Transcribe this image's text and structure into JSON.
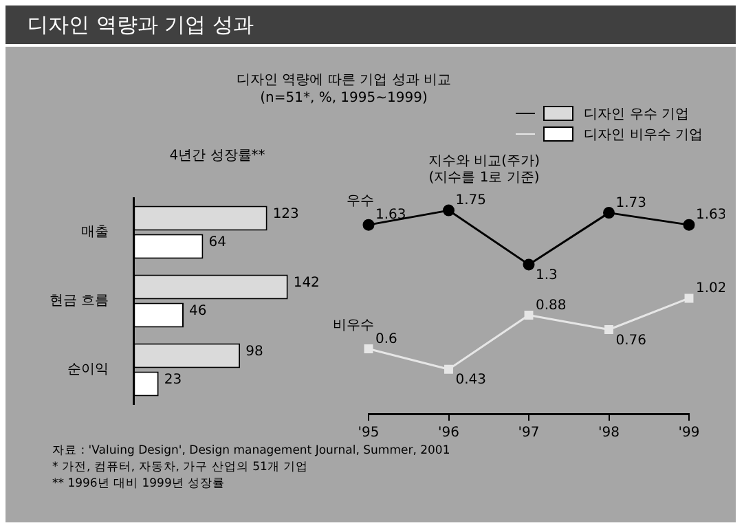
{
  "chart_data": [
    {
      "type": "other",
      "title": "디자인 역량과 기업 성과",
      "subtitle": "디자인 역량에 따른 기업 성과 비교\n(n=51*, %, 1995~1999)",
      "annotations": [
        "자료 : 'Valuing Design', Design management Journal, Summer, 2001",
        "* 가전, 컴퓨터, 자동차, 가구 산업의 51개 기업",
        "** 1996년 대비 1999년 성장률"
      ]
    },
    {
      "type": "bar",
      "orientation": "horizontal",
      "title": "4년간 성장률**",
      "categories": [
        "매출",
        "현금 흐름",
        "순이익"
      ],
      "series": [
        {
          "name": "디자인 우수 기업",
          "color": "#dadada",
          "values": [
            123,
            142,
            98
          ]
        },
        {
          "name": "디자인 비우수 기업",
          "color": "#ffffff",
          "values": [
            64,
            46,
            23
          ]
        }
      ],
      "data_labels": true,
      "legend": "top right",
      "grid": false
    },
    {
      "type": "line",
      "title": "지수와 비교(주가)",
      "subtitle": "(지수를 1로 기준)",
      "categories": [
        "'95",
        "'96",
        "'97",
        "'98",
        "'99"
      ],
      "series": [
        {
          "name": "우수",
          "color": "#000000",
          "marker": "circle",
          "values": [
            1.63,
            1.75,
            1.3,
            1.73,
            1.63
          ]
        },
        {
          "name": "비우수",
          "color": "#e6e6e6",
          "marker": "square",
          "values": [
            0.6,
            0.43,
            0.88,
            0.76,
            1.02
          ]
        }
      ],
      "data_labels": true,
      "grid": false,
      "tick_labels": "x"
    }
  ]
}
